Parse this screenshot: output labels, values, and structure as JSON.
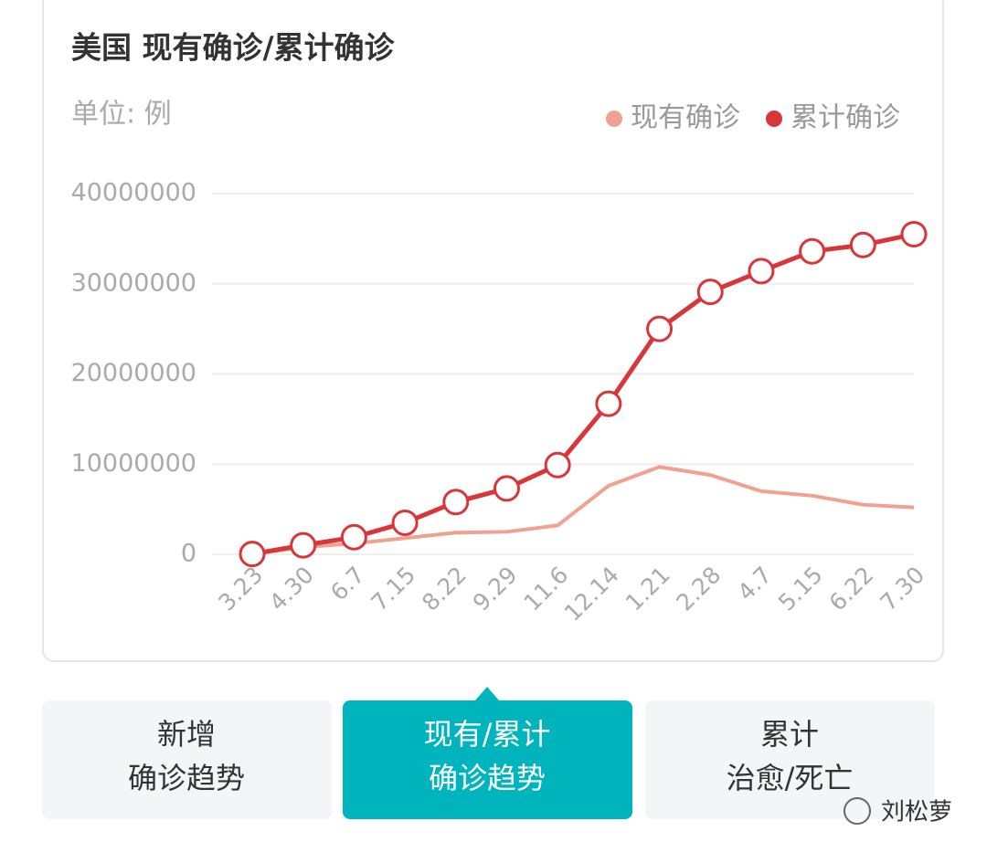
{
  "chart_data": {
    "type": "line",
    "title": "美国 现有确诊/累计确诊",
    "subtitle": "单位: 例",
    "categories": [
      "3.23",
      "4.30",
      "6.7",
      "7.15",
      "8.22",
      "9.29",
      "11.6",
      "12.14",
      "1.21",
      "2.28",
      "4.7",
      "5.15",
      "6.22",
      "7.30"
    ],
    "series": [
      {
        "name": "现有确诊",
        "color": "#f2a090",
        "markers": false,
        "values": [
          40000,
          800000,
          1200000,
          1800000,
          2400000,
          2500000,
          3200000,
          7600000,
          9700000,
          8800000,
          7000000,
          6500000,
          5500000,
          5200000
        ]
      },
      {
        "name": "累计确诊",
        "color": "#d9363a",
        "markers": true,
        "values": [
          40000,
          1000000,
          1900000,
          3500000,
          5800000,
          7300000,
          9900000,
          16700000,
          25000000,
          29100000,
          31400000,
          33600000,
          34300000,
          35500000
        ]
      }
    ],
    "ylim": [
      0,
      40000000
    ],
    "yticks": [
      0,
      10000000,
      20000000,
      30000000,
      40000000
    ],
    "grid": true,
    "legend": "top-right"
  },
  "tabs": [
    {
      "lines": [
        "新增",
        "确诊趋势"
      ],
      "active": false
    },
    {
      "lines": [
        "现有/累计",
        "确诊趋势"
      ],
      "active": true
    },
    {
      "lines": [
        "累计",
        "治愈/死亡"
      ],
      "active": false
    }
  ],
  "watermark": "刘松萝"
}
